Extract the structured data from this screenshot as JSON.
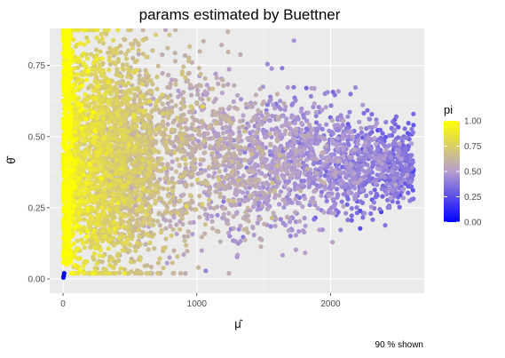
{
  "chart_data": {
    "type": "scatter",
    "title": "params estimated by Buettner",
    "xlabel": "μ̂",
    "ylabel": "θ̂",
    "caption": "90 % shown",
    "xlim": [
      -100,
      2700
    ],
    "ylim": [
      -0.05,
      0.88
    ],
    "x_ticks": [
      0,
      1000,
      2000
    ],
    "x_tick_labels": [
      "0",
      "1000",
      "2000"
    ],
    "y_ticks": [
      0,
      0.25,
      0.5,
      0.75
    ],
    "y_tick_labels": [
      "0.00",
      "0.25",
      "0.50",
      "0.75"
    ],
    "grid": true,
    "color_scale": {
      "name": "pi",
      "low_color": "#0000ff",
      "mid_color": "#b59ed0",
      "high_color": "#ffff00",
      "range": [
        0,
        1
      ],
      "ticks": [
        0,
        0.25,
        0.5,
        0.75,
        1
      ],
      "tick_labels": [
        "0.00",
        "0.25",
        "0.50",
        "0.75",
        "1.00"
      ]
    },
    "legend_position": "right",
    "panel_background": "#ebebeb",
    "point_clusters": [
      {
        "x": 5,
        "y": 0.01,
        "pi": 0.0
      },
      {
        "x": 8,
        "y": 0.02,
        "pi": 0.02
      },
      {
        "x": 3,
        "y": 0.005,
        "pi": 0.0
      }
    ],
    "distribution": {
      "x_range": [
        0,
        2620
      ],
      "y_center": 0.4,
      "y_spread_at_low_x": 0.45,
      "y_spread_at_high_x": 0.12,
      "approx_points": 5200
    }
  }
}
